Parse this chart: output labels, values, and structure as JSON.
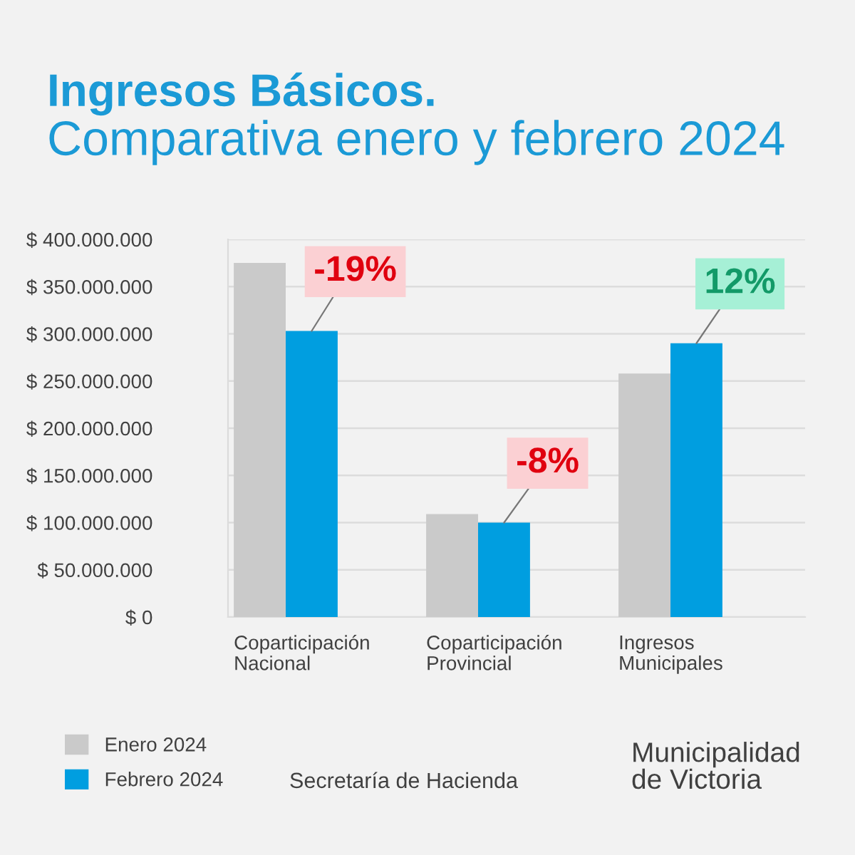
{
  "chart_data": {
    "type": "bar",
    "title": "Ingresos Básicos.",
    "subtitle": "Comparativa enero y febrero 2024",
    "categories": [
      "Coparticipación Nacional",
      "Coparticipación Provincial",
      "Ingresos Municipales"
    ],
    "series": [
      {
        "name": "Enero 2024",
        "color": "#cacaca",
        "values": [
          375000000,
          109000000,
          258000000
        ]
      },
      {
        "name": "Febrero 2024",
        "color": "#009ee0",
        "values": [
          303000000,
          100000000,
          290000000
        ]
      }
    ],
    "ylim": [
      0,
      400000000
    ],
    "yticks": [
      {
        "value": 0,
        "label": "$ 0"
      },
      {
        "value": 50000000,
        "label": "$ 50.000.000"
      },
      {
        "value": 100000000,
        "label": "$ 100.000.000"
      },
      {
        "value": 150000000,
        "label": "$ 150.000.000"
      },
      {
        "value": 200000000,
        "label": "$ 200.000.000"
      },
      {
        "value": 250000000,
        "label": "$ 250.000.000"
      },
      {
        "value": 300000000,
        "label": "$ 300.000.000"
      },
      {
        "value": 350000000,
        "label": "$ 350.000.000"
      },
      {
        "value": 400000000,
        "label": "$ 400.000.000"
      }
    ],
    "grid": "y",
    "legend": "bottom left",
    "annotations": [
      {
        "text": "-19%",
        "x": "Coparticipación Nacional",
        "y": 303000000
      },
      {
        "text": "-8%",
        "x": "Coparticipación Provincial",
        "y": 100000000
      },
      {
        "text": "12%",
        "x": "Ingresos Municipales",
        "y": 290000000
      },
      "Secretaría de Hacienda",
      "Municipalidad de Victoria"
    ]
  }
}
